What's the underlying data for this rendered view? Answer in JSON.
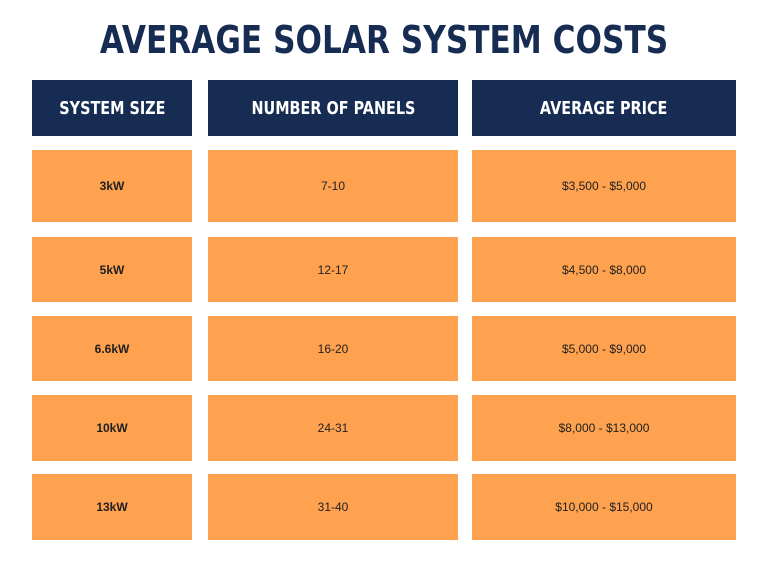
{
  "title": "AVERAGE SOLAR SYSTEM COSTS",
  "headers": [
    "SYSTEM SIZE",
    "NUMBER OF PANELS",
    "AVERAGE PRICE"
  ],
  "rows": [
    {
      "size": "3kW",
      "panels": "7-10",
      "price": "$3,500 - $5,000"
    },
    {
      "size": "5kW",
      "panels": "12-17",
      "price": "$4,500 - $8,000"
    },
    {
      "size": "6.6kW",
      "panels": "16-20",
      "price": "$5,000 - $9,000"
    },
    {
      "size": "10kW",
      "panels": "24-31",
      "price": "$8,000 - $13,000"
    },
    {
      "size": "13kW",
      "panels": "31-40",
      "price": "$10,000 - $15,000"
    }
  ],
  "colors": {
    "header_bg": "#172c53",
    "row_bg": "#fea24f",
    "title": "#172c53"
  }
}
